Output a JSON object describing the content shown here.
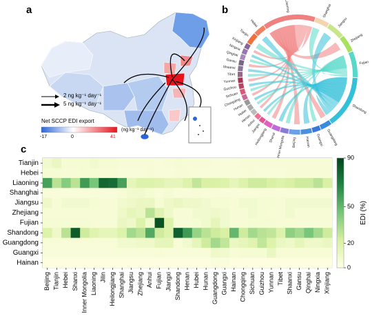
{
  "panels": {
    "a": "a",
    "b": "b",
    "c": "c"
  },
  "map_legend": {
    "arrow_small": "2 ng kg⁻¹ day⁻¹",
    "arrow_large": "5 ng kg⁻¹ day⁻¹",
    "title": "Net SCCP EDI export",
    "min": "-17",
    "mid": "0",
    "max": "41",
    "unit": "(ng kg⁻¹ day⁻¹)",
    "colors": {
      "low": "#2a66d9",
      "mid": "#ffffff",
      "high": "#e8141d"
    }
  },
  "chord_labels": [
    "Liaoning",
    "Shanghai",
    "Jiangsu",
    "Zhejiang",
    "Fujian",
    "Shandong",
    "Guangdong",
    "Guangxi",
    "Hainan",
    "Beijing",
    "Inner Mongolia",
    "Shanxi",
    "Heilongjiang",
    "Jiangxi",
    "Anhui",
    "Henan",
    "Hubei",
    "Hunan",
    "Chongqing",
    "Sichuan",
    "Guizhou",
    "Yunnan",
    "Tibet",
    "Shaanxi",
    "Gansu",
    "Qinghai",
    "Ningxia",
    "Xinjiang",
    "Tianjin",
    "Hebei"
  ],
  "chart_data": {
    "type": "heatmap",
    "title": "",
    "rows": [
      "Tianjin",
      "Hebei",
      "Liaoning",
      "Shanghai",
      "Jiangsu",
      "Zhejiang",
      "Fujian",
      "Shandong",
      "Guangdong",
      "Guangxi",
      "Hainan"
    ],
    "columns": [
      "Beijing",
      "Tianjin",
      "Hebei",
      "Shanxi",
      "Inner Mongolia",
      "Liaoning",
      "Jilin",
      "Heilongjiang",
      "Shanghai",
      "Jiangsu",
      "Zhejiang",
      "Anhui",
      "Fujian",
      "Jiangxi",
      "Shandong",
      "Henan",
      "Hubei",
      "Hunan",
      "Guangdong",
      "Guangxi",
      "Hainan",
      "Chongqing",
      "Sichuan",
      "Guizhou",
      "Yunnan",
      "Tibet",
      "Shaanxi",
      "Gansu",
      "Qinghai",
      "Ningxia",
      "Xinjiang"
    ],
    "values": [
      [
        8,
        12,
        6,
        6,
        6,
        8,
        6,
        6,
        5,
        5,
        5,
        5,
        4,
        5,
        6,
        5,
        5,
        5,
        4,
        4,
        4,
        5,
        5,
        5,
        5,
        5,
        5,
        5,
        5,
        5,
        5
      ],
      [
        6,
        6,
        5,
        5,
        6,
        6,
        5,
        5,
        4,
        4,
        4,
        5,
        4,
        4,
        5,
        5,
        4,
        4,
        4,
        4,
        4,
        4,
        5,
        4,
        4,
        4,
        5,
        5,
        5,
        5,
        5
      ],
      [
        58,
        30,
        42,
        30,
        60,
        45,
        78,
        76,
        58,
        15,
        20,
        20,
        18,
        15,
        15,
        20,
        28,
        22,
        22,
        20,
        15,
        20,
        25,
        25,
        22,
        20,
        22,
        25,
        25,
        30,
        22
      ],
      [
        4,
        4,
        4,
        4,
        4,
        4,
        4,
        4,
        5,
        8,
        8,
        6,
        4,
        6,
        4,
        4,
        5,
        4,
        4,
        4,
        4,
        4,
        4,
        4,
        4,
        4,
        4,
        4,
        4,
        4,
        4
      ],
      [
        10,
        5,
        8,
        8,
        8,
        6,
        5,
        5,
        8,
        10,
        12,
        12,
        6,
        10,
        12,
        10,
        10,
        8,
        6,
        6,
        5,
        8,
        8,
        6,
        6,
        5,
        8,
        8,
        8,
        8,
        8
      ],
      [
        5,
        5,
        5,
        5,
        5,
        5,
        5,
        5,
        10,
        15,
        12,
        30,
        18,
        10,
        5,
        5,
        8,
        8,
        10,
        8,
        5,
        5,
        8,
        6,
        5,
        5,
        8,
        5,
        5,
        5,
        5
      ],
      [
        6,
        6,
        6,
        6,
        6,
        5,
        5,
        5,
        12,
        10,
        20,
        8,
        85,
        20,
        5,
        5,
        6,
        8,
        15,
        8,
        5,
        5,
        6,
        6,
        6,
        5,
        5,
        5,
        5,
        5,
        5
      ],
      [
        20,
        10,
        30,
        82,
        25,
        18,
        15,
        15,
        20,
        35,
        30,
        55,
        25,
        20,
        80,
        60,
        38,
        30,
        25,
        22,
        50,
        25,
        35,
        30,
        28,
        20,
        40,
        35,
        45,
        35,
        25
      ],
      [
        5,
        5,
        5,
        5,
        5,
        5,
        5,
        5,
        8,
        8,
        10,
        10,
        15,
        15,
        5,
        8,
        15,
        25,
        35,
        28,
        12,
        15,
        18,
        28,
        20,
        12,
        10,
        15,
        10,
        10,
        12
      ],
      [
        4,
        4,
        4,
        4,
        4,
        4,
        4,
        4,
        4,
        4,
        4,
        4,
        5,
        4,
        4,
        4,
        4,
        4,
        10,
        8,
        5,
        6,
        6,
        6,
        12,
        5,
        5,
        5,
        5,
        5,
        5
      ],
      [
        2,
        2,
        2,
        2,
        2,
        2,
        2,
        2,
        2,
        2,
        2,
        2,
        2,
        2,
        2,
        2,
        2,
        2,
        3,
        3,
        2,
        2,
        2,
        2,
        2,
        2,
        2,
        2,
        2,
        2,
        2
      ]
    ],
    "colorbar": {
      "label": "EDI (%)",
      "min": 0,
      "max": 90,
      "ticks": [
        0,
        20,
        50,
        90
      ]
    },
    "colors": [
      "#ffffe5",
      "#d9f0a3",
      "#78c679",
      "#238443",
      "#00441b"
    ]
  }
}
